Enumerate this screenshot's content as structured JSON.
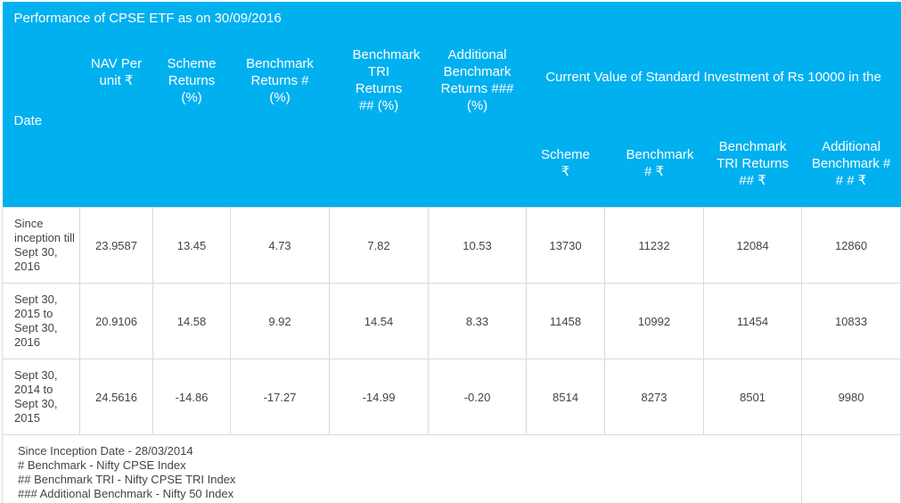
{
  "title": "Performance of CPSE ETF as on 30/09/2016",
  "headers": {
    "date": "Date",
    "nav": "NAV Per unit ₹",
    "scheme_returns": "Scheme Returns (%)",
    "benchmark_returns": "Benchmark Returns # (%)",
    "benchmark_tri_returns": "Benchmark TRI Returns ## (%)",
    "additional_benchmark_returns": "Additional Benchmark Returns ### (%)",
    "current_value": "Current Value of Standard Investment of Rs 10000 in the",
    "cv_scheme": "Scheme ₹",
    "cv_benchmark": "Benchmark # ₹",
    "cv_benchmark_tri": "Benchmark TRI Returns ## ₹",
    "cv_additional_benchmark": "Additional Benchmark # # # ₹"
  },
  "rows": [
    {
      "date": "Since inception till Sept 30, 2016",
      "nav": "23.9587",
      "scheme_returns": "13.45",
      "benchmark_returns": "4.73",
      "benchmark_tri_returns": "7.82",
      "additional_benchmark_returns": "10.53",
      "cv_scheme": "13730",
      "cv_benchmark": "11232",
      "cv_benchmark_tri": "12084",
      "cv_additional_benchmark": "12860"
    },
    {
      "date": "Sept 30, 2015 to Sept 30, 2016",
      "nav": "20.9106",
      "scheme_returns": "14.58",
      "benchmark_returns": "9.92",
      "benchmark_tri_returns": "14.54",
      "additional_benchmark_returns": "8.33",
      "cv_scheme": "11458",
      "cv_benchmark": "10992",
      "cv_benchmark_tri": "11454",
      "cv_additional_benchmark": "10833"
    },
    {
      "date": "Sept 30, 2014 to Sept 30, 2015",
      "nav": "24.5616",
      "scheme_returns": "-14.86",
      "benchmark_returns": "-17.27",
      "benchmark_tri_returns": "-14.99",
      "additional_benchmark_returns": "-0.20",
      "cv_scheme": "8514",
      "cv_benchmark": "8273",
      "cv_benchmark_tri": "8501",
      "cv_additional_benchmark": "9980"
    }
  ],
  "notes": [
    "Since Inception Date - 28/03/2014",
    "# Benchmark -  Nifty CPSE Index",
    "## Benchmark TRI -  Nifty CPSE TRI Index",
    "### Additional Benchmark -  Nifty 50 Index"
  ]
}
